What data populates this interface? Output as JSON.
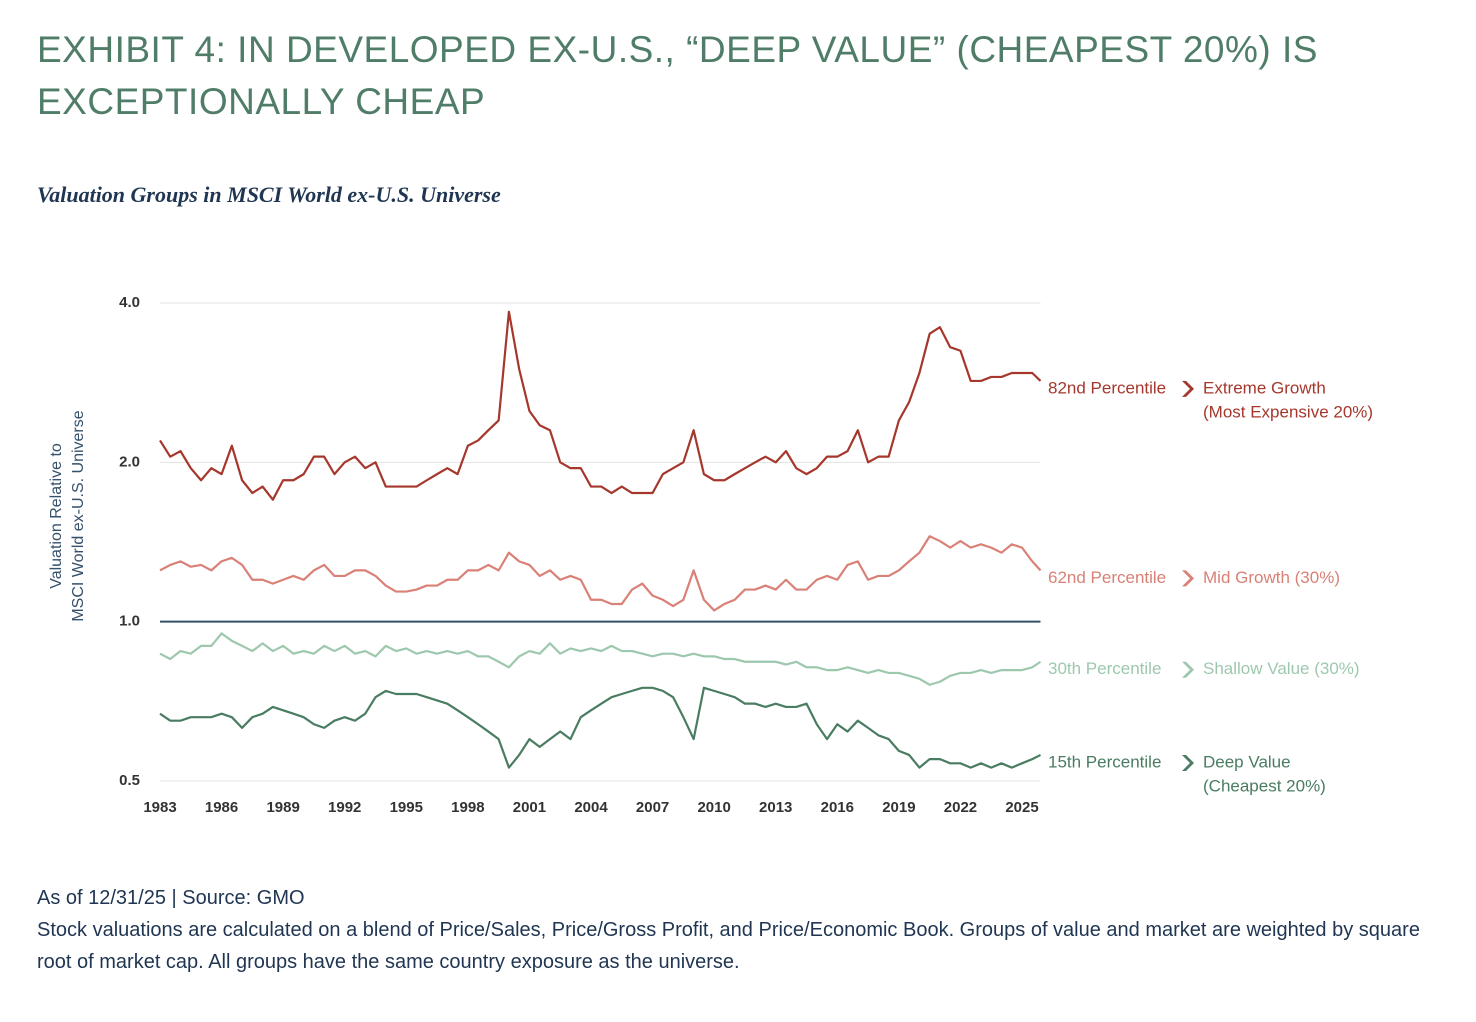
{
  "chart_data": {
    "type": "line",
    "title": "EXHIBIT 4: IN DEVELOPED EX-U.S., “DEEP VALUE” (CHEAPEST 20%) IS EXCEPTIONALLY CHEAP",
    "subtitle": "Valuation Groups in MSCI World ex-U.S. Universe",
    "y_label": [
      "Valuation Relative to",
      "MSCI World ex-U.S. Universe"
    ],
    "y_scale": "log",
    "ylim": [
      0.5,
      4.0
    ],
    "yticks": [
      {
        "value": 0.5,
        "label": "0.5"
      },
      {
        "value": 1,
        "label": "1.0"
      },
      {
        "value": 2,
        "label": "2.0"
      },
      {
        "value": 4,
        "label": "4.0"
      }
    ],
    "baseline": 1,
    "baseline_color": "#34506b",
    "grid": true,
    "xlim": [
      1983,
      2025.9
    ],
    "xticks": [
      1983,
      1986,
      1989,
      1992,
      1995,
      1998,
      2001,
      2004,
      2007,
      2010,
      2013,
      2016,
      2019,
      2022,
      2025
    ],
    "x": [
      1983,
      1983.5,
      1984,
      1984.5,
      1985,
      1985.5,
      1986,
      1986.5,
      1987,
      1987.5,
      1988,
      1988.5,
      1989,
      1989.5,
      1990,
      1990.5,
      1991,
      1991.5,
      1992,
      1992.5,
      1993,
      1993.5,
      1994,
      1994.5,
      1995,
      1995.5,
      1996,
      1996.5,
      1997,
      1997.5,
      1998,
      1998.5,
      1999,
      1999.5,
      2000,
      2000.5,
      2001,
      2001.5,
      2002,
      2002.5,
      2003,
      2003.5,
      2004,
      2004.5,
      2005,
      2005.5,
      2006,
      2006.5,
      2007,
      2007.5,
      2008,
      2008.5,
      2009,
      2009.5,
      2010,
      2010.5,
      2011,
      2011.5,
      2012,
      2012.5,
      2013,
      2013.5,
      2014,
      2014.5,
      2015,
      2015.5,
      2016,
      2016.5,
      2017,
      2017.5,
      2018,
      2018.5,
      2019,
      2019.5,
      2020,
      2020.5,
      2021,
      2021.5,
      2022,
      2022.5,
      2023,
      2023.5,
      2024,
      2024.5,
      2025,
      2025.5,
      2025.9
    ],
    "series": [
      {
        "name": [
          "Extreme Growth",
          "(Most Expensive 20%)"
        ],
        "percentile": "82nd Percentile",
        "color": "#a5372c",
        "values": [
          2.2,
          2.05,
          2.1,
          1.95,
          1.85,
          1.95,
          1.9,
          2.15,
          1.85,
          1.75,
          1.8,
          1.7,
          1.85,
          1.85,
          1.9,
          2.05,
          2.05,
          1.9,
          2.0,
          2.05,
          1.95,
          2.0,
          1.8,
          1.8,
          1.8,
          1.8,
          1.85,
          1.9,
          1.95,
          1.9,
          2.15,
          2.2,
          2.3,
          2.4,
          3.85,
          3.0,
          2.5,
          2.35,
          2.3,
          2.0,
          1.95,
          1.95,
          1.8,
          1.8,
          1.75,
          1.8,
          1.75,
          1.75,
          1.75,
          1.9,
          1.95,
          2.0,
          2.3,
          1.9,
          1.85,
          1.85,
          1.9,
          1.95,
          2.0,
          2.05,
          2.0,
          2.1,
          1.95,
          1.9,
          1.95,
          2.05,
          2.05,
          2.1,
          2.3,
          2.0,
          2.05,
          2.05,
          2.4,
          2.6,
          2.95,
          3.5,
          3.6,
          3.3,
          3.25,
          2.85,
          2.85,
          2.9,
          2.9,
          2.95,
          2.95,
          2.95,
          2.85
        ]
      },
      {
        "name": [
          "Mid Growth (30%)"
        ],
        "percentile": "62nd Percentile",
        "color": "#d98077",
        "values": [
          1.25,
          1.28,
          1.3,
          1.27,
          1.28,
          1.25,
          1.3,
          1.32,
          1.28,
          1.2,
          1.2,
          1.18,
          1.2,
          1.22,
          1.2,
          1.25,
          1.28,
          1.22,
          1.22,
          1.25,
          1.25,
          1.22,
          1.17,
          1.14,
          1.14,
          1.15,
          1.17,
          1.17,
          1.2,
          1.2,
          1.25,
          1.25,
          1.28,
          1.25,
          1.35,
          1.3,
          1.28,
          1.22,
          1.25,
          1.2,
          1.22,
          1.2,
          1.1,
          1.1,
          1.08,
          1.08,
          1.15,
          1.18,
          1.12,
          1.1,
          1.07,
          1.1,
          1.25,
          1.1,
          1.05,
          1.08,
          1.1,
          1.15,
          1.15,
          1.17,
          1.15,
          1.2,
          1.15,
          1.15,
          1.2,
          1.22,
          1.2,
          1.28,
          1.3,
          1.2,
          1.22,
          1.22,
          1.25,
          1.3,
          1.35,
          1.45,
          1.42,
          1.38,
          1.42,
          1.38,
          1.4,
          1.38,
          1.35,
          1.4,
          1.38,
          1.3,
          1.25
        ]
      },
      {
        "name": [
          "Shallow Value (30%)"
        ],
        "percentile": "30th Percentile",
        "color": "#9dc8ae",
        "values": [
          0.87,
          0.85,
          0.88,
          0.87,
          0.9,
          0.9,
          0.95,
          0.92,
          0.9,
          0.88,
          0.91,
          0.88,
          0.9,
          0.87,
          0.88,
          0.87,
          0.9,
          0.88,
          0.9,
          0.87,
          0.88,
          0.86,
          0.9,
          0.88,
          0.89,
          0.87,
          0.88,
          0.87,
          0.88,
          0.87,
          0.88,
          0.86,
          0.86,
          0.84,
          0.82,
          0.86,
          0.88,
          0.87,
          0.91,
          0.87,
          0.89,
          0.88,
          0.89,
          0.88,
          0.9,
          0.88,
          0.88,
          0.87,
          0.86,
          0.87,
          0.87,
          0.86,
          0.87,
          0.86,
          0.86,
          0.85,
          0.85,
          0.84,
          0.84,
          0.84,
          0.84,
          0.83,
          0.84,
          0.82,
          0.82,
          0.81,
          0.81,
          0.82,
          0.81,
          0.8,
          0.81,
          0.8,
          0.8,
          0.79,
          0.78,
          0.76,
          0.77,
          0.79,
          0.8,
          0.8,
          0.81,
          0.8,
          0.81,
          0.81,
          0.81,
          0.82,
          0.84
        ]
      },
      {
        "name": [
          "Deep Value",
          "(Cheapest 20%)"
        ],
        "percentile": "15th Percentile",
        "color": "#4a7c62",
        "values": [
          0.67,
          0.65,
          0.65,
          0.66,
          0.66,
          0.66,
          0.67,
          0.66,
          0.63,
          0.66,
          0.67,
          0.69,
          0.68,
          0.67,
          0.66,
          0.64,
          0.63,
          0.65,
          0.66,
          0.65,
          0.67,
          0.72,
          0.74,
          0.73,
          0.73,
          0.73,
          0.72,
          0.71,
          0.7,
          0.68,
          0.66,
          0.64,
          0.62,
          0.6,
          0.53,
          0.56,
          0.6,
          0.58,
          0.6,
          0.62,
          0.6,
          0.66,
          0.68,
          0.7,
          0.72,
          0.73,
          0.74,
          0.75,
          0.75,
          0.74,
          0.72,
          0.66,
          0.6,
          0.75,
          0.74,
          0.73,
          0.72,
          0.7,
          0.7,
          0.69,
          0.7,
          0.69,
          0.69,
          0.7,
          0.64,
          0.6,
          0.64,
          0.62,
          0.65,
          0.63,
          0.61,
          0.6,
          0.57,
          0.56,
          0.53,
          0.55,
          0.55,
          0.54,
          0.54,
          0.53,
          0.54,
          0.53,
          0.54,
          0.53,
          0.54,
          0.55,
          0.56
        ]
      }
    ],
    "source": "As of 12/31/25 | Source: GMO",
    "note": "Stock valuations are calculated on a blend of Price/Sales, Price/Gross Profit, and Price/Economic Book. Groups of value and market are weighted by square root of market cap. All groups have the same country exposure as the universe."
  }
}
